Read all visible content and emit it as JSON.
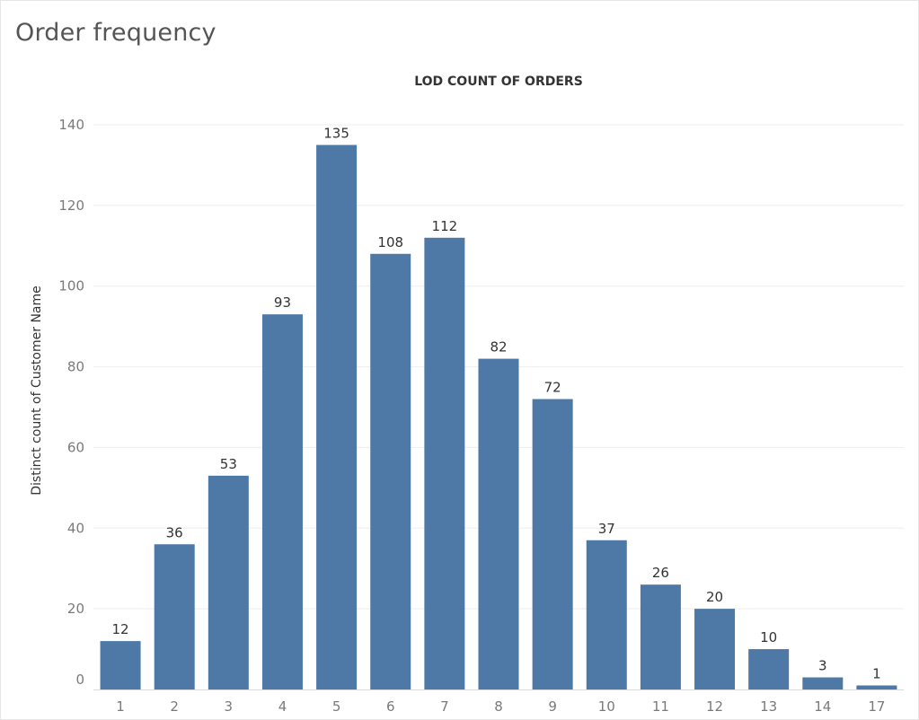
{
  "title": "Order frequency",
  "chart_data": {
    "type": "bar",
    "title": "Order frequency",
    "xlabel": "LOD COUNT OF ORDERS",
    "ylabel": "Distinct count of Customer Name",
    "categories": [
      "1",
      "2",
      "3",
      "4",
      "5",
      "6",
      "7",
      "8",
      "9",
      "10",
      "11",
      "12",
      "13",
      "14",
      "17"
    ],
    "values": [
      12,
      36,
      53,
      93,
      135,
      108,
      112,
      82,
      72,
      37,
      26,
      20,
      10,
      3,
      1
    ],
    "ylim": [
      0,
      140
    ],
    "yticks": [
      0,
      20,
      40,
      60,
      80,
      100,
      120,
      140
    ],
    "grid": true,
    "data_labels": true,
    "bar_color": "#4e79a7"
  }
}
